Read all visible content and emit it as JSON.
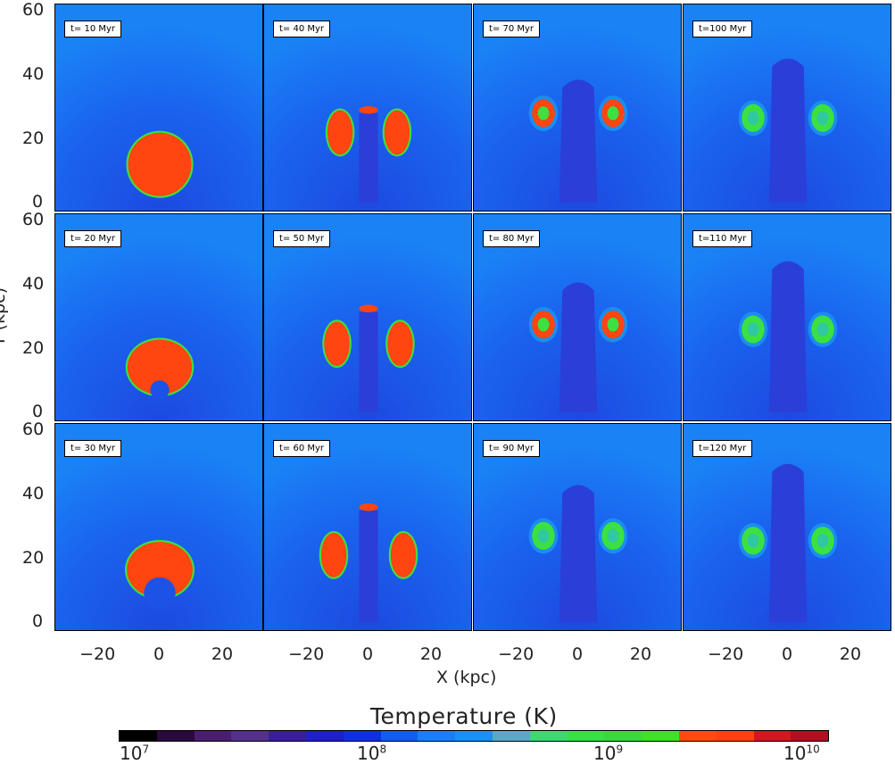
{
  "chart_data": {
    "type": "heatmap",
    "title": "",
    "xlabel": "X (kpc)",
    "ylabel": "Y (kpc)",
    "x_ticks": [
      "−20",
      "0",
      "20"
    ],
    "y_ticks": [
      "0",
      "20",
      "40",
      "60"
    ],
    "xlim": [
      -33,
      33
    ],
    "ylim": [
      -3,
      62
    ],
    "panels": [
      {
        "label": "t= 10 Myr",
        "time_myr": 10
      },
      {
        "label": "t= 40 Myr",
        "time_myr": 40
      },
      {
        "label": "t= 70 Myr",
        "time_myr": 70
      },
      {
        "label": "t=100 Myr",
        "time_myr": 100
      },
      {
        "label": "t= 20 Myr",
        "time_myr": 20
      },
      {
        "label": "t= 50 Myr",
        "time_myr": 50
      },
      {
        "label": "t= 80 Myr",
        "time_myr": 80
      },
      {
        "label": "t=110 Myr",
        "time_myr": 110
      },
      {
        "label": "t= 30 Myr",
        "time_myr": 30
      },
      {
        "label": "t= 60 Myr",
        "time_myr": 60
      },
      {
        "label": "t= 90 Myr",
        "time_myr": 90
      },
      {
        "label": "t=120 Myr",
        "time_myr": 120
      }
    ],
    "colorbar": {
      "label": "Temperature (K)",
      "scale": "log",
      "range": [
        10000000,
        10000000000
      ],
      "ticks": [
        {
          "base": "10",
          "exp": "7"
        },
        {
          "base": "10",
          "exp": "8"
        },
        {
          "base": "10",
          "exp": "9"
        },
        {
          "base": "10",
          "exp": "10"
        }
      ],
      "colors": [
        "#000000",
        "#2a0a3c",
        "#4a1e6e",
        "#55308a",
        "#3a1f9a",
        "#2020c8",
        "#1030e0",
        "#1060f0",
        "#1a7ef8",
        "#1a90f5",
        "#5aa8c8",
        "#40d870",
        "#38e040",
        "#3cd838",
        "#40e028",
        "#ff4a10",
        "#ff4010",
        "#d01820",
        "#b01020"
      ]
    }
  },
  "colors": {
    "background_gas": "#1a6ff0",
    "jet_cavity": "#2a3fd8",
    "hot_bubble": "#ff4510",
    "bubble_rim": "#3ce040",
    "cool_shell": "#1a8ef0"
  }
}
